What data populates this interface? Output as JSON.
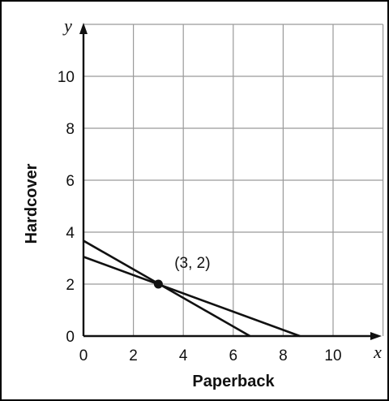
{
  "chart_data": {
    "type": "line",
    "xlabel": "Paperback",
    "ylabel": "Hardcover",
    "x_var": "x",
    "y_var": "y",
    "xlim": [
      0,
      12
    ],
    "ylim": [
      0,
      12
    ],
    "x_ticks": [
      "0",
      "2",
      "4",
      "6",
      "8",
      "10"
    ],
    "y_ticks": [
      "0",
      "2",
      "4",
      "6",
      "8",
      "10"
    ],
    "grid": true,
    "series": [
      {
        "x": [
          0,
          6.67
        ],
        "y": [
          3.67,
          0
        ]
      },
      {
        "x": [
          0,
          8.67
        ],
        "y": [
          3.05,
          0
        ]
      }
    ],
    "points": [
      {
        "x": 3,
        "y": 2,
        "label": "(3, 2)"
      }
    ],
    "colors": {
      "line": "#111111",
      "grid": "#9a9a9a",
      "frame": "#000000"
    }
  }
}
